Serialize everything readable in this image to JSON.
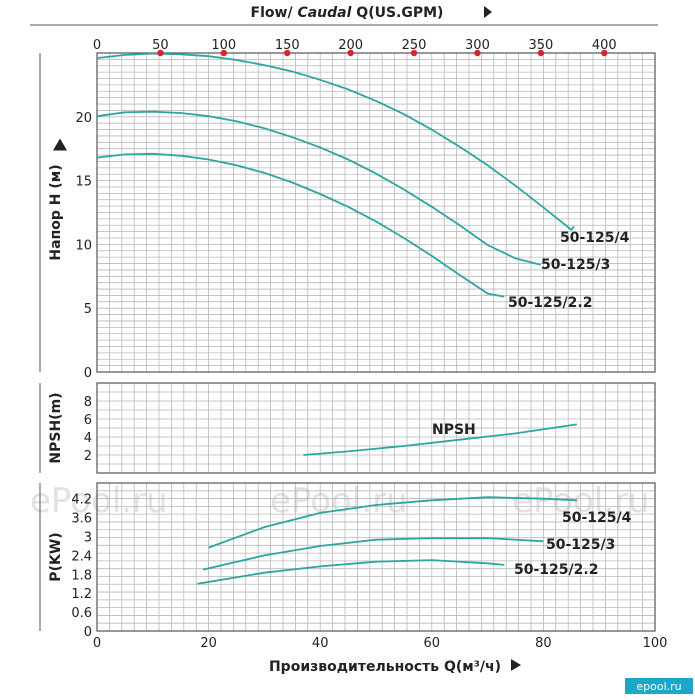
{
  "chart_data": [
    {
      "type": "line",
      "panel": "head",
      "title": "Flow/ Caudal Q(US.GPM)",
      "title_plain": "Flow/ ",
      "title_italic": "Caudal",
      "title_rest": " Q(US.GPM)",
      "top_axis_ticks": [
        0,
        50,
        100,
        150,
        200,
        250,
        300,
        350,
        400
      ],
      "top_axis_range": [
        0,
        440
      ],
      "marker_color": "#d9252a",
      "ylabel": "Напор H (м)",
      "ylim": [
        0,
        25
      ],
      "yticks": [
        0,
        5,
        10,
        15,
        20
      ],
      "xlim": [
        0,
        100
      ],
      "series": [
        {
          "name": "50-125/4",
          "x": [
            0,
            5,
            10,
            15,
            20,
            25,
            30,
            35,
            40,
            45,
            50,
            55,
            60,
            65,
            70,
            75,
            80,
            85,
            85.5
          ],
          "y": [
            24.6,
            24.85,
            24.95,
            24.9,
            24.75,
            24.45,
            24.05,
            23.55,
            22.9,
            22.15,
            21.25,
            20.2,
            19.0,
            17.65,
            16.2,
            14.6,
            12.9,
            11.15,
            11.4
          ]
        },
        {
          "name": "50-125/3",
          "x": [
            0,
            5,
            10,
            15,
            20,
            25,
            30,
            35,
            40,
            45,
            50,
            55,
            60,
            65,
            70,
            75,
            79.5
          ],
          "y": [
            20.05,
            20.35,
            20.4,
            20.3,
            20.05,
            19.65,
            19.1,
            18.4,
            17.6,
            16.65,
            15.55,
            14.3,
            12.95,
            11.5,
            9.95,
            8.9,
            8.4
          ]
        },
        {
          "name": "50-125/2.2",
          "x": [
            0,
            5,
            10,
            15,
            20,
            25,
            30,
            35,
            40,
            45,
            50,
            55,
            60,
            65,
            70,
            73
          ],
          "y": [
            16.8,
            17.05,
            17.1,
            16.95,
            16.65,
            16.2,
            15.6,
            14.85,
            13.95,
            12.95,
            11.8,
            10.5,
            9.1,
            7.6,
            6.15,
            5.9
          ]
        }
      ]
    },
    {
      "type": "line",
      "panel": "npsh",
      "ylabel": "NPSH(m)",
      "ylim": [
        0,
        10
      ],
      "yticks": [
        2,
        4,
        6,
        8
      ],
      "xlim": [
        0,
        100
      ],
      "series": [
        {
          "name": "NPSH",
          "x": [
            37,
            45,
            55,
            65,
            75,
            86
          ],
          "y": [
            2.0,
            2.4,
            3.0,
            3.7,
            4.4,
            5.4
          ]
        }
      ]
    },
    {
      "type": "line",
      "panel": "power",
      "ylabel": "P(KW)",
      "xlabel": "Производительность Q(м³/ч)",
      "ylim": [
        0,
        4.7
      ],
      "yticks": [
        0,
        0.6,
        1.2,
        1.8,
        2.4,
        3,
        3.6,
        4.2
      ],
      "ytick_labels": [
        "0",
        "0.6",
        "1.2",
        "1.8",
        "2.4",
        "3",
        "3.6",
        "4.2"
      ],
      "xticks": [
        0,
        20,
        40,
        60,
        80,
        100
      ],
      "xlim": [
        0,
        100
      ],
      "series": [
        {
          "name": "50-125/4",
          "x": [
            20,
            30,
            40,
            50,
            60,
            70,
            80,
            86
          ],
          "y": [
            2.65,
            3.3,
            3.75,
            4.0,
            4.15,
            4.25,
            4.2,
            4.15
          ]
        },
        {
          "name": "50-125/3",
          "x": [
            19,
            30,
            40,
            50,
            60,
            70,
            80
          ],
          "y": [
            1.95,
            2.4,
            2.7,
            2.9,
            2.95,
            2.95,
            2.85
          ]
        },
        {
          "name": "50-125/2.2",
          "x": [
            18,
            30,
            40,
            50,
            60,
            70,
            73
          ],
          "y": [
            1.5,
            1.85,
            2.05,
            2.2,
            2.25,
            2.15,
            2.1
          ]
        }
      ]
    }
  ],
  "watermarks": [
    "ePool.ru",
    "ePool.ru",
    "ePool.ru"
  ],
  "brand": "epool.ru",
  "colors": {
    "curve": "#2ba7a0",
    "grid": "#b9b9b9",
    "marker": "#d9252a",
    "brand_bg": "#1ba7c5"
  }
}
